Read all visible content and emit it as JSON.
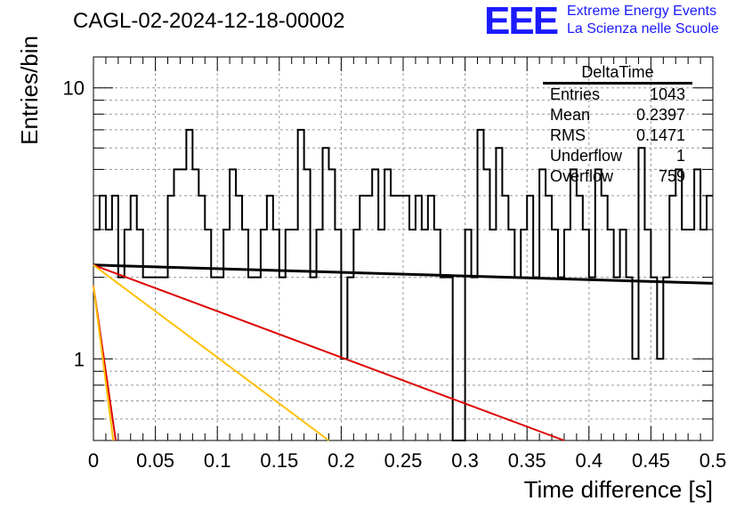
{
  "header": {
    "title": "CAGL-02-2024-12-18-00002",
    "logo_text": "EEE",
    "logo_line1": "Extreme Energy Events",
    "logo_line2": "La Scienza nelle Scuole"
  },
  "stats_box": {
    "title": "DeltaTime",
    "rows": [
      {
        "label": "Entries",
        "value": "1043"
      },
      {
        "label": "Mean",
        "value": "0.2397"
      },
      {
        "label": "RMS",
        "value": "0.1471"
      },
      {
        "label": "Underflow",
        "value": "1"
      },
      {
        "label": "Overflow",
        "value": "759"
      }
    ]
  },
  "colors": {
    "histogram": "#000000",
    "fit_flat": "#000000",
    "fit_red": "#dd0000",
    "fit_yellow": "#ffc000",
    "grid": "#999999"
  },
  "chart_data": {
    "type": "line",
    "title": "CAGL-02-2024-12-18-00002",
    "xlabel": "Time difference [s]",
    "ylabel": "Entries/bin",
    "xlim": [
      0,
      0.5
    ],
    "ylim": [
      0.5,
      13
    ],
    "yscale": "log",
    "grid": true,
    "xticks": [
      "0",
      "0.05",
      "0.1",
      "0.15",
      "0.2",
      "0.25",
      "0.3",
      "0.35",
      "0.4",
      "0.45",
      "0.5"
    ],
    "yticks": [
      "1",
      "10"
    ],
    "bin_width": 0.005,
    "histogram": [
      3,
      4,
      3,
      4,
      2,
      3,
      4,
      3,
      2,
      2,
      2,
      2,
      4,
      5,
      5,
      7,
      5,
      4,
      3,
      2,
      2,
      3,
      5,
      4,
      3,
      2,
      2,
      3,
      4,
      3,
      2,
      3,
      3,
      7,
      5,
      2,
      3,
      6,
      5,
      3,
      1,
      2,
      3,
      4,
      4,
      5,
      3,
      5,
      4,
      4,
      4,
      3,
      4,
      3,
      4,
      3,
      2,
      2,
      0.5,
      0.5,
      3,
      2,
      7,
      5,
      3,
      6,
      4,
      3,
      2,
      3,
      4,
      2,
      5,
      4,
      3,
      2,
      3,
      5,
      4,
      3,
      2,
      5,
      4,
      3,
      2,
      3,
      2,
      1,
      6,
      3,
      2,
      1,
      2,
      4,
      5,
      3,
      3,
      5,
      3,
      4
    ],
    "series": [
      {
        "values": [
          [
            0,
            2.22
          ],
          [
            0.5,
            1.9
          ]
        ]
      },
      {
        "values": [
          [
            0,
            2.22
          ],
          [
            0.38,
            0.5
          ]
        ]
      },
      {
        "values": [
          [
            0,
            2.22
          ],
          [
            0.19,
            0.5
          ]
        ]
      },
      {
        "values": [
          [
            0,
            1.86
          ],
          [
            0.018,
            0.5
          ]
        ]
      },
      {
        "values": [
          [
            0,
            1.86
          ],
          [
            0.016,
            0.5
          ]
        ]
      }
    ]
  }
}
